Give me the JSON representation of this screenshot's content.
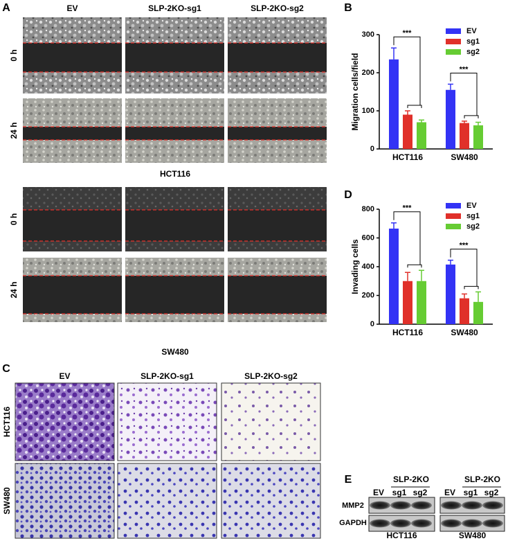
{
  "panels": {
    "A": {
      "label": "A",
      "columns": [
        "EV",
        "SLP-2KO-sg1",
        "SLP-2KO-sg2"
      ],
      "rows": [
        "0 h",
        "24 h"
      ],
      "cell_lines": [
        "HCT116",
        "SW480"
      ]
    },
    "C": {
      "label": "C",
      "columns": [
        "EV",
        "SLP-2KO-sg1",
        "SLP-2KO-sg2"
      ],
      "rows": [
        "HCT116",
        "SW480"
      ]
    },
    "E": {
      "label": "E",
      "group_label": "SLP-2KO",
      "lanes": [
        "EV",
        "sg1",
        "sg2"
      ],
      "proteins": [
        "MMP2",
        "GAPDH"
      ],
      "cell_lines": [
        "HCT116",
        "SW480"
      ]
    }
  },
  "chart_data": [
    {
      "type": "bar",
      "panel_label": "B",
      "ylabel": "Migration cells/field",
      "categories": [
        "HCT116",
        "SW480"
      ],
      "series": [
        {
          "name": "EV",
          "color": "#3333f5",
          "values": [
            235,
            155
          ],
          "errors": [
            30,
            15
          ]
        },
        {
          "name": "sg1",
          "color": "#e0302a",
          "values": [
            90,
            68
          ],
          "errors": [
            10,
            5
          ]
        },
        {
          "name": "sg2",
          "color": "#66cc33",
          "values": [
            70,
            62
          ],
          "errors": [
            6,
            8
          ]
        }
      ],
      "ylim": [
        0,
        300
      ],
      "yticks": [
        0,
        100,
        200,
        300
      ],
      "legend": "upper right",
      "annotations": [
        "***",
        "***"
      ]
    },
    {
      "type": "bar",
      "panel_label": "D",
      "ylabel": "Invading cells",
      "categories": [
        "HCT116",
        "SW480"
      ],
      "series": [
        {
          "name": "EV",
          "color": "#3333f5",
          "values": [
            665,
            415
          ],
          "errors": [
            40,
            30
          ]
        },
        {
          "name": "sg1",
          "color": "#e0302a",
          "values": [
            300,
            180
          ],
          "errors": [
            60,
            30
          ]
        },
        {
          "name": "sg2",
          "color": "#66cc33",
          "values": [
            300,
            155
          ],
          "errors": [
            75,
            70
          ]
        }
      ],
      "ylim": [
        0,
        800
      ],
      "yticks": [
        0,
        200,
        400,
        600,
        800
      ],
      "legend": "upper right",
      "annotations": [
        "***",
        "***"
      ]
    }
  ]
}
